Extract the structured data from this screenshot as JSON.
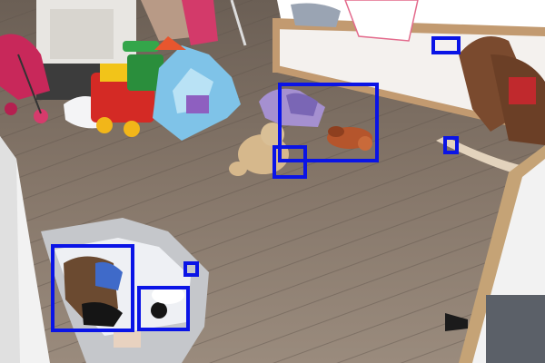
{
  "scene": {
    "annotation_color": "#0a14e6",
    "boxes": [
      {
        "name": "detection-box-1"
      },
      {
        "name": "detection-box-2"
      },
      {
        "name": "detection-box-3"
      },
      {
        "name": "detection-box-4"
      },
      {
        "name": "detection-box-5"
      },
      {
        "name": "detection-box-6"
      },
      {
        "name": "detection-box-7"
      },
      {
        "name": "detection-box-8"
      }
    ]
  }
}
